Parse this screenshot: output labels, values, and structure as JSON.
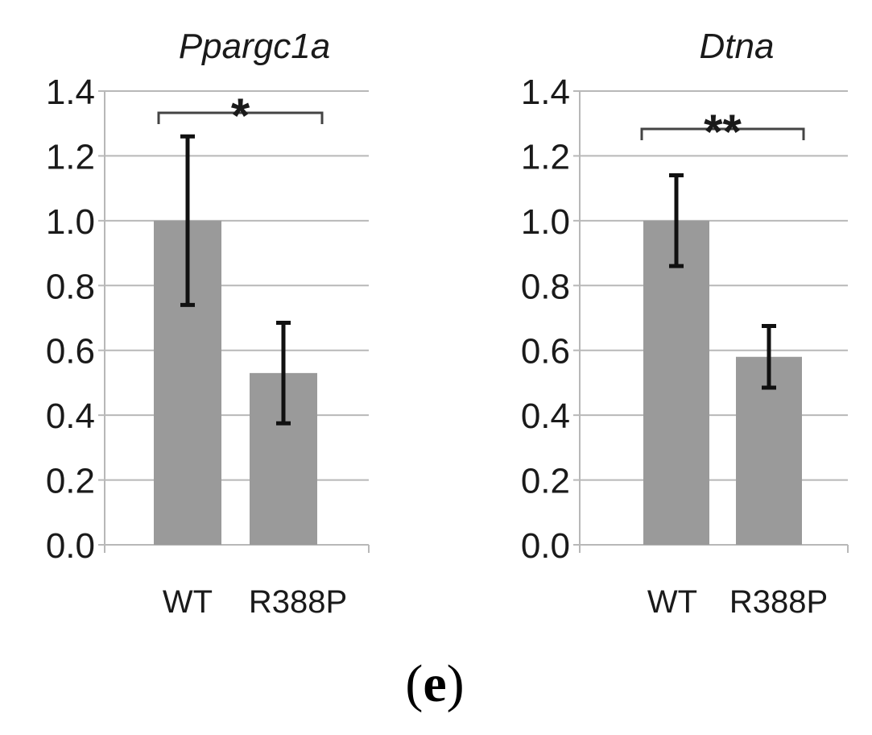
{
  "chart_data": [
    {
      "type": "bar",
      "title": "Ppargc1a",
      "categories": [
        "WT",
        "R388P"
      ],
      "values": [
        1.0,
        0.53
      ],
      "error_bars": [
        0.26,
        0.155
      ],
      "ylim": [
        0,
        1.4
      ],
      "yticks": [
        "0.0",
        "0.2",
        "0.4",
        "0.6",
        "0.8",
        "1.0",
        "1.2",
        "1.4"
      ],
      "grid": true,
      "significance": "*",
      "bar_color": "#9a9a9a"
    },
    {
      "type": "bar",
      "title": "Dtna",
      "categories": [
        "WT",
        "R388P"
      ],
      "values": [
        1.0,
        0.58
      ],
      "error_bars": [
        0.14,
        0.095
      ],
      "ylim": [
        0,
        1.4
      ],
      "yticks": [
        "0.0",
        "0.2",
        "0.4",
        "0.6",
        "0.8",
        "1.0",
        "1.2",
        "1.4"
      ],
      "grid": true,
      "significance": "**",
      "bar_color": "#9a9a9a"
    }
  ],
  "panel_label": {
    "open": "(",
    "letter": "e",
    "close": ")"
  }
}
